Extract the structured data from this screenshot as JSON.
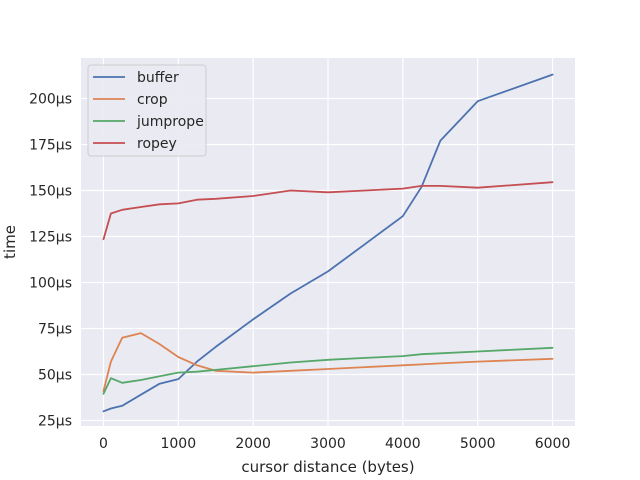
{
  "chart_data": {
    "type": "line",
    "title": "",
    "xlabel": "cursor distance (bytes)",
    "ylabel": "time",
    "xlim": [
      -300,
      6300
    ],
    "ylim": [
      22,
      222
    ],
    "x_ticks": [
      0,
      1000,
      2000,
      3000,
      4000,
      5000,
      6000
    ],
    "x_tick_labels": [
      "0",
      "1000",
      "2000",
      "3000",
      "4000",
      "5000",
      "6000"
    ],
    "y_ticks": [
      25,
      50,
      75,
      100,
      125,
      150,
      175,
      200
    ],
    "y_tick_labels": [
      "25µs",
      "50µs",
      "75µs",
      "100µs",
      "125µs",
      "150µs",
      "175µs",
      "200µs"
    ],
    "grid": true,
    "legend_position": "top-left",
    "series": [
      {
        "name": "buffer",
        "color": "#4c72b0",
        "x": [
          0,
          100,
          250,
          500,
          750,
          1000,
          1250,
          1500,
          2000,
          2500,
          3000,
          3500,
          4000,
          4250,
          4500,
          5000,
          6000
        ],
        "y": [
          30,
          31.5,
          33,
          39,
          45,
          47.5,
          57,
          65,
          80,
          94,
          106,
          121,
          136,
          152,
          177,
          198.5,
          213
        ]
      },
      {
        "name": "crop",
        "color": "#dd8452",
        "x": [
          0,
          100,
          250,
          500,
          750,
          1000,
          1250,
          1500,
          2000,
          2500,
          3000,
          3500,
          4000,
          4250,
          4500,
          5000,
          6000
        ],
        "y": [
          41,
          57,
          70,
          72.5,
          66.5,
          59.5,
          55,
          52,
          51,
          52,
          53,
          54,
          55,
          55.5,
          56,
          57,
          58.5
        ]
      },
      {
        "name": "jumprope",
        "color": "#55a868",
        "x": [
          0,
          100,
          250,
          500,
          750,
          1000,
          1250,
          1500,
          2000,
          2500,
          3000,
          3500,
          4000,
          4250,
          4500,
          5000,
          6000
        ],
        "y": [
          39.5,
          48,
          45.5,
          47,
          49,
          51,
          51.5,
          52.5,
          54.5,
          56.5,
          58,
          59,
          60,
          61,
          61.5,
          62.5,
          64.5
        ]
      },
      {
        "name": "ropey",
        "color": "#c44e52",
        "x": [
          0,
          100,
          250,
          500,
          750,
          1000,
          1250,
          1500,
          2000,
          2500,
          3000,
          3500,
          4000,
          4250,
          4500,
          5000,
          6000
        ],
        "y": [
          123.5,
          137.5,
          139.5,
          141,
          142.5,
          143,
          145,
          145.5,
          147,
          150,
          149,
          150,
          151,
          152.5,
          152.5,
          151.5,
          154.5
        ]
      }
    ]
  }
}
